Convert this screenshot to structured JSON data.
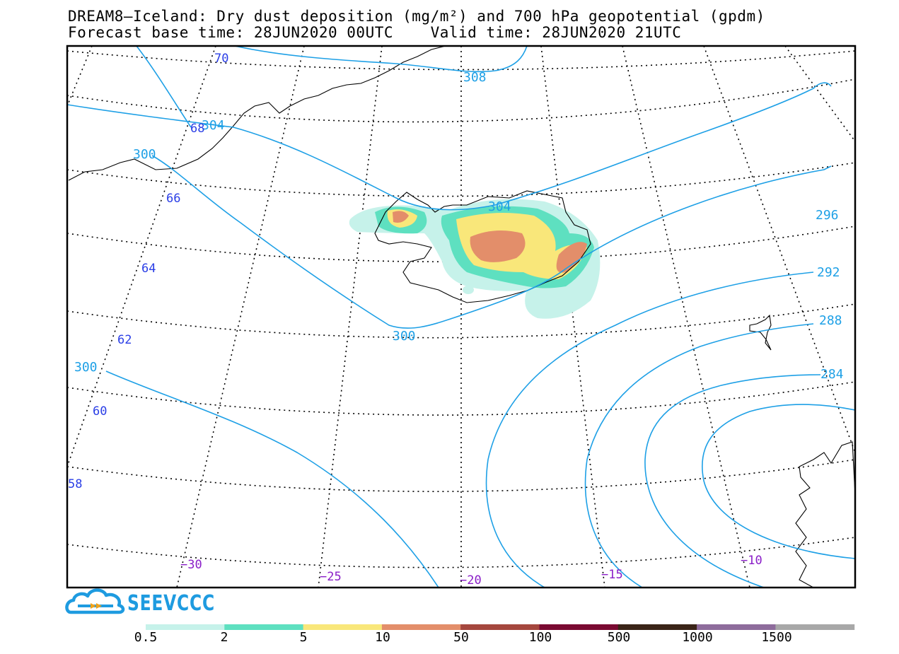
{
  "title": {
    "line1": "DREAM8–Iceland: Dry dust deposition (mg/m²) and 700 hPa geopotential (gpdm)",
    "line2": "Forecast base time: 28JUN2020 00UTC    Valid time: 28JUN2020 21UTC"
  },
  "logo": {
    "text": "SEEVCCC",
    "icon": "cloud-arrow-icon",
    "color": "#1e9be0"
  },
  "contour_color": "#1ea0e6",
  "contour_labels": [
    "308",
    "304",
    "304",
    "300",
    "300",
    "300",
    "296",
    "292",
    "288",
    "284"
  ],
  "lat_labels": [
    "70",
    "68",
    "66",
    "64",
    "62",
    "60",
    "58"
  ],
  "lon_labels": [
    "−30",
    "−25",
    "−20",
    "−15",
    "−10"
  ],
  "colorbar": {
    "labels": [
      "0.5",
      "2",
      "5",
      "10",
      "50",
      "100",
      "500",
      "1000",
      "1500"
    ],
    "colors": [
      "#c6f2ea",
      "#5ee0c0",
      "#f9e77a",
      "#e38e6a",
      "#a5473e",
      "#7a0a32",
      "#3a2418",
      "#8e6c9c",
      "#a8a8a8"
    ]
  }
}
